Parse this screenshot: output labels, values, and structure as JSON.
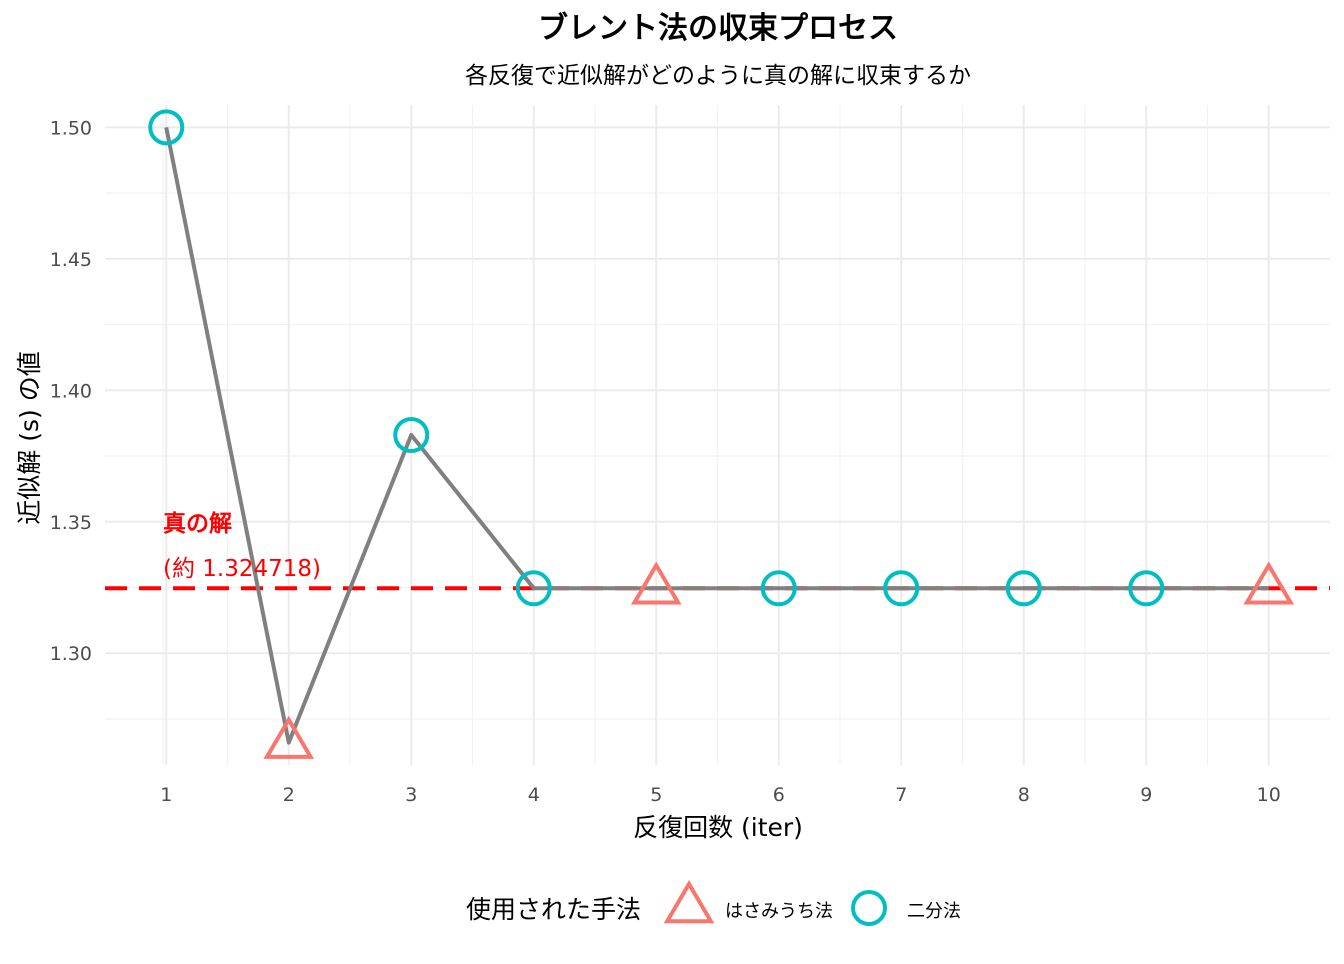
{
  "chart_data": {
    "type": "line",
    "title": "ブレント法の収束プロセス",
    "subtitle": "各反復で近似解がどのように真の解に収束するか",
    "xlabel": "反復回数 (iter)",
    "ylabel": "近似解 (s) の値",
    "x": [
      1,
      2,
      3,
      4,
      5,
      6,
      7,
      8,
      9,
      10
    ],
    "series": [
      {
        "values": [
          1.5,
          1.266,
          1.383,
          1.3247,
          1.3247,
          1.3247,
          1.3247,
          1.3247,
          1.3247,
          1.3247
        ],
        "methods": [
          "二分法",
          "はさみうち法",
          "二分法",
          "二分法",
          "はさみうち法",
          "二分法",
          "二分法",
          "二分法",
          "二分法",
          "はさみうち法"
        ]
      }
    ],
    "xticks": [
      "1",
      "2",
      "3",
      "4",
      "5",
      "6",
      "7",
      "8",
      "9",
      "10"
    ],
    "yticks": [
      1.3,
      1.35,
      1.4,
      1.45,
      1.5
    ],
    "ytick_labels": [
      "1.30",
      "1.35",
      "1.40",
      "1.45",
      "1.50"
    ],
    "xlim": [
      0.5,
      10.5
    ],
    "ylim": [
      1.2575,
      1.5085
    ],
    "reference_line": {
      "value": 1.324718,
      "label_line1": "真の解",
      "label_line2": "(約 1.324718)",
      "color": "#FF0000"
    },
    "legend": {
      "title": "使用された手法",
      "position": "bottom",
      "entries": [
        {
          "label": "はさみうち法",
          "shape": "triangle",
          "color": "#F8766D"
        },
        {
          "label": "二分法",
          "shape": "circle",
          "color": "#00BFC4"
        }
      ]
    },
    "line_color": "#808080",
    "grid": true
  }
}
